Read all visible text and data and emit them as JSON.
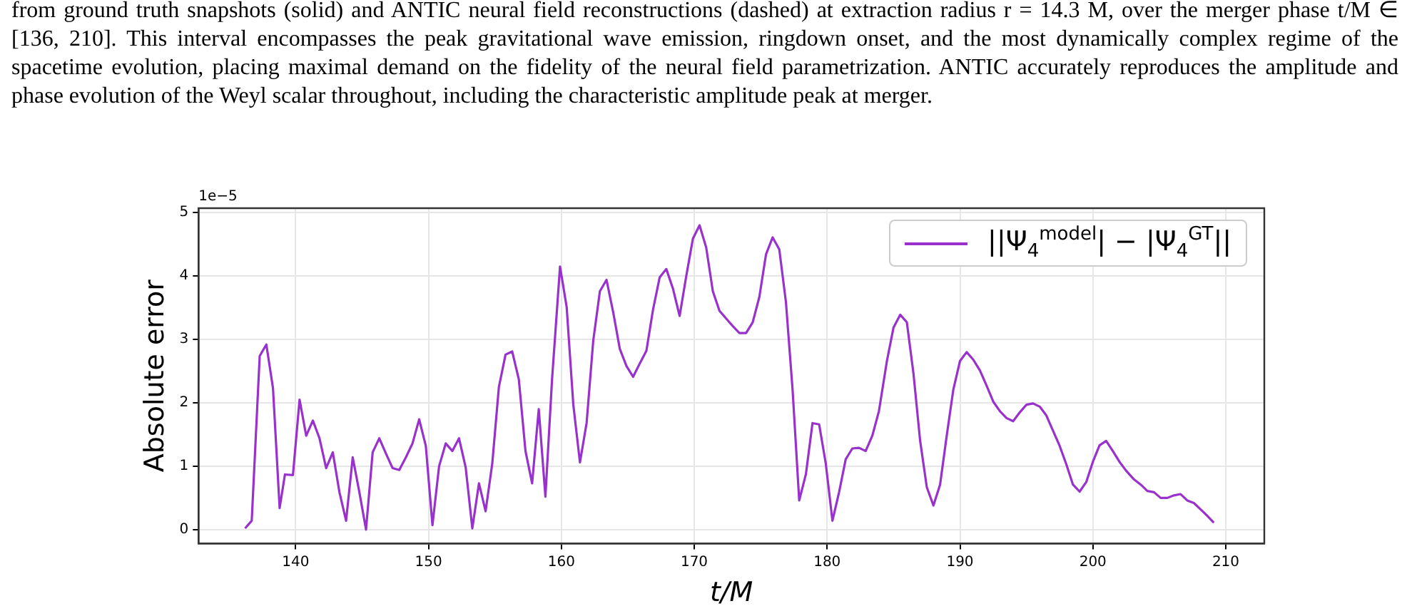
{
  "chart_data": {
    "type": "line",
    "annotations": [
      "from ground truth snapshots (solid) and ANTIC neural field reconstructions (dashed) at extraction radius r = 14.3 M, over the merger phase t/M ∈ [136, 210]. This interval encompasses the peak gravitational wave emission, ringdown onset, and the most dynamically complex regime of the spacetime evolution, placing maximal demand on the fidelity of the neural field parametrization. ANTIC accurately reproduces the amplitude and phase evolution of the Weyl scalar throughout, including the characteristic amplitude peak at merger.",
      "1e−5"
    ],
    "xlabel": "t/M",
    "ylabel": "Absolute error",
    "x": [
      136.2,
      136.7,
      137.3,
      137.8,
      138.3,
      138.8,
      139.2,
      139.8,
      140.3,
      140.8,
      141.3,
      141.8,
      142.3,
      142.8,
      143.3,
      143.8,
      144.3,
      144.8,
      145.3,
      145.8,
      146.3,
      146.8,
      147.3,
      147.8,
      148.3,
      148.8,
      149.3,
      149.8,
      150.3,
      150.8,
      151.3,
      151.8,
      152.3,
      152.8,
      153.3,
      153.8,
      154.3,
      154.8,
      155.3,
      155.8,
      156.3,
      156.8,
      157.3,
      157.8,
      158.3,
      158.8,
      159.3,
      159.9,
      160.4,
      160.9,
      161.4,
      161.9,
      162.4,
      162.9,
      163.4,
      163.9,
      164.4,
      164.9,
      165.4,
      165.9,
      166.4,
      166.9,
      167.4,
      167.9,
      168.4,
      168.9,
      169.4,
      169.9,
      170.4,
      170.9,
      171.4,
      171.9,
      172.4,
      172.9,
      173.4,
      173.9,
      174.4,
      174.9,
      175.4,
      175.9,
      176.4,
      176.9,
      177.4,
      177.9,
      178.4,
      178.9,
      179.4,
      179.9,
      180.4,
      180.9,
      181.4,
      181.9,
      182.4,
      182.9,
      183.4,
      183.9,
      184.5,
      185.0,
      185.5,
      186.0,
      186.5,
      187.0,
      187.5,
      188.0,
      188.5,
      189.0,
      189.5,
      190.0,
      190.5,
      191.0,
      191.5,
      192.0,
      192.5,
      193.0,
      193.5,
      194.0,
      194.5,
      195.0,
      195.5,
      196.0,
      196.5,
      197.0,
      197.5,
      198.0,
      198.5,
      199.0,
      199.5,
      200.0,
      200.5,
      201.0,
      201.5,
      202.0,
      202.5,
      203.1,
      203.6,
      204.1,
      204.6,
      205.1,
      205.6,
      206.1,
      206.6,
      207.1,
      207.6,
      208.1,
      208.6,
      209.1
    ],
    "series": [
      {
        "name": "||Ψ$_{4}$$^{model}$| − |Ψ$_{4}$$^{GT}$||",
        "color": "#9932cc",
        "values": [
          0.02,
          0.14,
          2.74,
          2.92,
          2.23,
          0.34,
          0.87,
          0.86,
          2.05,
          1.48,
          1.72,
          1.44,
          0.97,
          1.22,
          0.59,
          0.14,
          1.14,
          0.59,
          0.0,
          1.22,
          1.44,
          1.2,
          0.97,
          0.94,
          1.14,
          1.36,
          1.74,
          1.32,
          0.07,
          1.0,
          1.36,
          1.24,
          1.44,
          0.98,
          0.02,
          0.73,
          0.29,
          1.04,
          2.25,
          2.76,
          2.81,
          2.37,
          1.24,
          0.73,
          1.9,
          0.52,
          2.37,
          4.15,
          3.51,
          1.97,
          1.06,
          1.68,
          2.98,
          3.76,
          3.94,
          3.43,
          2.85,
          2.58,
          2.41,
          2.62,
          2.82,
          3.47,
          3.98,
          4.11,
          3.8,
          3.37,
          4.0,
          4.59,
          4.8,
          4.45,
          3.76,
          3.45,
          3.33,
          3.21,
          3.1,
          3.1,
          3.27,
          3.67,
          4.34,
          4.61,
          4.42,
          3.59,
          2.21,
          0.46,
          0.87,
          1.68,
          1.66,
          1.04,
          0.14,
          0.59,
          1.11,
          1.28,
          1.29,
          1.24,
          1.48,
          1.87,
          2.66,
          3.19,
          3.39,
          3.27,
          2.46,
          1.4,
          0.67,
          0.38,
          0.71,
          1.48,
          2.21,
          2.66,
          2.8,
          2.68,
          2.51,
          2.27,
          2.02,
          1.87,
          1.76,
          1.71,
          1.85,
          1.97,
          1.99,
          1.94,
          1.8,
          1.56,
          1.32,
          1.03,
          0.71,
          0.6,
          0.75,
          1.07,
          1.33,
          1.4,
          1.24,
          1.07,
          0.93,
          0.79,
          0.71,
          0.61,
          0.59,
          0.5,
          0.5,
          0.54,
          0.56,
          0.46,
          0.42,
          0.32,
          0.22,
          0.11
        ]
      }
    ],
    "xlim": [
      132.7,
      212.9
    ],
    "ylim": [
      -0.22,
      5.07
    ],
    "xticks": [
      140,
      150,
      160,
      170,
      180,
      190,
      200,
      210
    ],
    "yticks": [
      0,
      1,
      2,
      3,
      4,
      5
    ],
    "grid": true,
    "legend": "top right",
    "marker": "none",
    "line_style": "solid"
  }
}
